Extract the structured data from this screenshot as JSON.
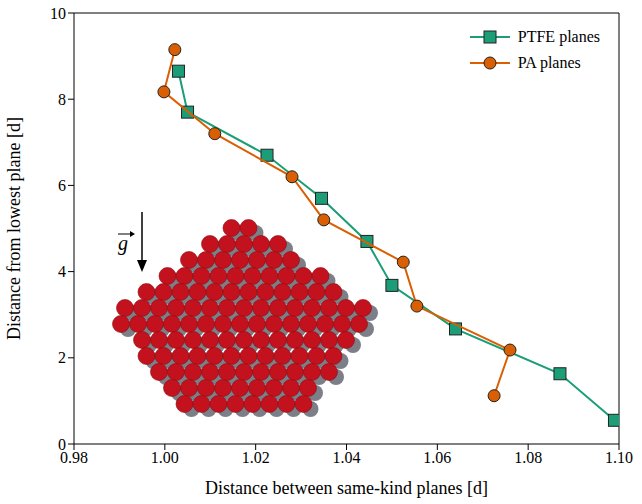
{
  "chart_data": {
    "type": "scatter",
    "x_label": "Distance between same-kind planes [d]",
    "y_label": "Distance from lowest plane [d]",
    "xlim": [
      0.98,
      1.1
    ],
    "xticks": [
      0.98,
      {
        "value": 1.0,
        "label": "1.00"
      },
      1.02,
      1.04,
      1.06,
      1.08,
      {
        "value": 1.1,
        "label": "1.10"
      }
    ],
    "ylim": [
      0,
      10
    ],
    "yticks": [
      0,
      2,
      4,
      6,
      8,
      10
    ],
    "grid": false,
    "legend": "upper right",
    "annotation": "g",
    "series": [
      {
        "name": "PTFE planes",
        "color": "#1b9e77",
        "marker": "square",
        "line_style": "solid",
        "x": [
          1.099,
          1.087,
          1.064,
          1.05,
          1.0445,
          1.0345,
          1.0225,
          1.005,
          1.003
        ],
        "values": [
          0.55,
          1.63,
          2.67,
          3.68,
          4.7,
          5.7,
          6.7,
          7.7,
          8.65
        ]
      },
      {
        "name": "PA planes",
        "color": "#d95f02",
        "marker": "circle",
        "line_style": "solid",
        "x": [
          1.0725,
          1.076,
          1.0555,
          1.0525,
          1.035,
          1.028,
          1.011,
          0.9998,
          1.0022
        ],
        "values": [
          1.12,
          2.18,
          3.2,
          4.22,
          5.2,
          6.2,
          7.2,
          8.17,
          9.15
        ]
      }
    ]
  }
}
